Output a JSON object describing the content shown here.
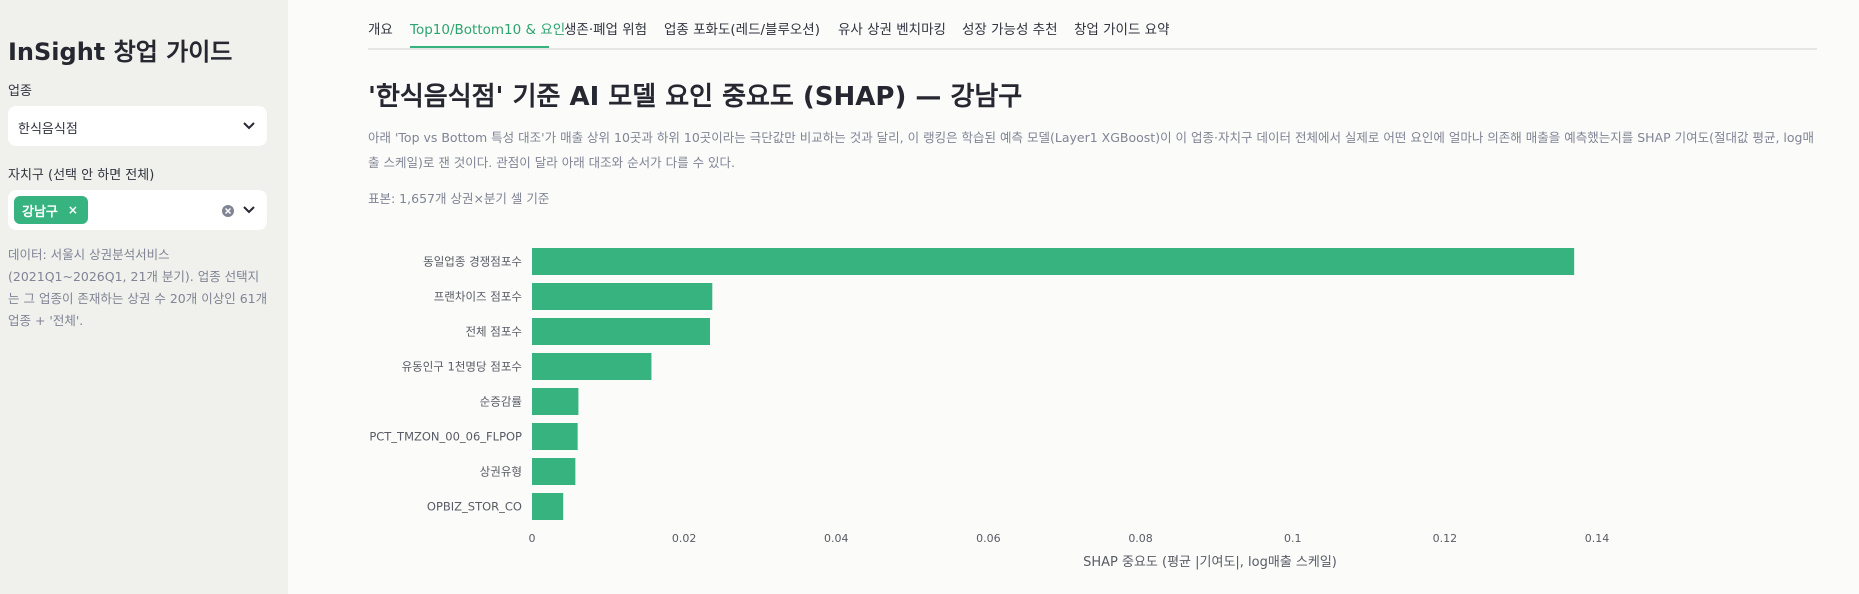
{
  "sidebar": {
    "title": "InSight 창업 가이드",
    "industry_label": "업종",
    "industry_value": "한식음식점",
    "district_label": "자치구 (선택 안 하면 전체)",
    "district_tag": "강남구",
    "tag_remove": "×",
    "note": "데이터: 서울시 상권분석서비스 (2021Q1~2026Q1, 21개 분기). 업종 선택지는 그 업종이 존재하는 상권 수 20개 이상인 61개 업종 + '전체'."
  },
  "tabs": [
    {
      "label": "개요"
    },
    {
      "label": "Top10/Bottom10 & 요인"
    },
    {
      "label": "생존·폐업 위험"
    },
    {
      "label": "업종 포화도(레드/블루오션)"
    },
    {
      "label": "유사 상권 벤치마킹"
    },
    {
      "label": "성장 가능성 추천"
    },
    {
      "label": "창업 가이드 요약"
    }
  ],
  "active_tab": 1,
  "main": {
    "title": "'한식음식점' 기준 AI 모델 요인 중요도 (SHAP) — 강남구",
    "description": "아래 'Top vs Bottom 특성 대조'가 매출 상위 10곳과 하위 10곳이라는 극단값만 비교하는 것과 달리, 이 랭킹은 학습된 예측 모델(Layer1 XGBoost)이 이 업종·자치구 데이터 전체에서 실제로 어떤 요인에 얼마나 의존해 매출을 예측했는지를 SHAP 기여도(절대값 평균, log매출 스케일)로 잰 것이다. 관점이 달라 아래 대조와 순서가 다를 수 있다.",
    "sample": "표본: 1,657개 상권×분기 셀 기준"
  },
  "colors": {
    "bar": "#36b37e",
    "accent": "#36b37e"
  },
  "chart_data": {
    "type": "bar",
    "orientation": "horizontal",
    "categories": [
      "동일업종 경쟁점포수",
      "프랜차이즈 점포수",
      "전체 점포수",
      "유동인구 1천명당 점포수",
      "순증감률",
      "PCT_TMZON_00_06_FLPOP",
      "상권유형",
      "OPBIZ_STOR_CO"
    ],
    "values": [
      0.137,
      0.0237,
      0.0234,
      0.0157,
      0.0061,
      0.006,
      0.0057,
      0.0041
    ],
    "xlabel": "SHAP 중요도 (평균 |기여도|, log매출 스케일)",
    "xlim": [
      0,
      0.14
    ],
    "xticks": [
      0,
      0.02,
      0.04,
      0.06,
      0.08,
      0.1,
      0.12,
      0.14
    ],
    "xtick_labels": [
      "0",
      "0.02",
      "0.04",
      "0.06",
      "0.08",
      "0.1",
      "0.12",
      "0.14"
    ]
  }
}
